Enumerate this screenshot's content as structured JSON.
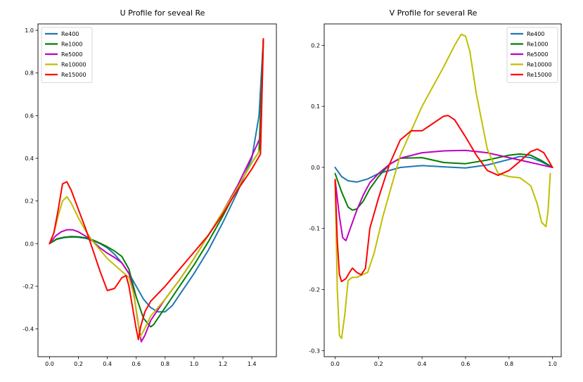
{
  "chart_data": [
    {
      "type": "line",
      "title": "U Profile for seveal Re",
      "xlabel": "",
      "ylabel": "",
      "xlim": [
        -0.08,
        1.57
      ],
      "ylim": [
        -0.53,
        1.03
      ],
      "xticks": [
        0.0,
        0.2,
        0.4,
        0.6,
        0.8,
        1.0,
        1.2,
        1.4
      ],
      "xtick_labels": [
        "0.0",
        "0.2",
        "0.4",
        "0.6",
        "0.8",
        "1.0",
        "1.2",
        "1.4"
      ],
      "yticks": [
        -0.4,
        -0.2,
        0.0,
        0.2,
        0.4,
        0.6,
        0.8,
        1.0
      ],
      "ytick_labels": [
        "-0.4",
        "-0.2",
        "0.0",
        "0.2",
        "0.4",
        "0.6",
        "0.8",
        "1.0"
      ],
      "grid": false,
      "legend_position": "top-left",
      "series": [
        {
          "name": "Re400",
          "color": "#1f77b4",
          "x": [
            0,
            0.05,
            0.1,
            0.15,
            0.2,
            0.25,
            0.3,
            0.35,
            0.4,
            0.45,
            0.5,
            0.55,
            0.6,
            0.65,
            0.7,
            0.75,
            0.8,
            0.85,
            0.9,
            1.0,
            1.1,
            1.2,
            1.3,
            1.4,
            1.45,
            1.48
          ],
          "y": [
            0,
            0.02,
            0.028,
            0.031,
            0.03,
            0.025,
            0.015,
            0.0,
            -0.02,
            -0.05,
            -0.09,
            -0.14,
            -0.2,
            -0.26,
            -0.3,
            -0.32,
            -0.32,
            -0.29,
            -0.24,
            -0.14,
            -0.03,
            0.1,
            0.24,
            0.4,
            0.6,
            0.96
          ]
        },
        {
          "name": "Re1000",
          "color": "#008000",
          "x": [
            0,
            0.05,
            0.1,
            0.15,
            0.2,
            0.25,
            0.3,
            0.35,
            0.4,
            0.45,
            0.5,
            0.55,
            0.6,
            0.65,
            0.7,
            0.72,
            0.75,
            0.8,
            0.9,
            1.0,
            1.1,
            1.2,
            1.3,
            1.4,
            1.45,
            1.48
          ],
          "y": [
            0,
            0.022,
            0.03,
            0.033,
            0.032,
            0.027,
            0.017,
            0.002,
            -0.015,
            -0.035,
            -0.06,
            -0.12,
            -0.25,
            -0.35,
            -0.39,
            -0.38,
            -0.35,
            -0.3,
            -0.2,
            -0.1,
            0.01,
            0.13,
            0.26,
            0.38,
            0.43,
            0.96
          ]
        },
        {
          "name": "Re5000",
          "color": "#bf00bf",
          "x": [
            0,
            0.04,
            0.08,
            0.12,
            0.16,
            0.2,
            0.25,
            0.3,
            0.35,
            0.4,
            0.45,
            0.5,
            0.55,
            0.58,
            0.61,
            0.635,
            0.66,
            0.7,
            0.8,
            0.9,
            1.0,
            1.1,
            1.2,
            1.3,
            1.4,
            1.46,
            1.48
          ],
          "y": [
            0,
            0.035,
            0.055,
            0.065,
            0.065,
            0.055,
            0.035,
            0.01,
            -0.02,
            -0.045,
            -0.065,
            -0.09,
            -0.14,
            -0.22,
            -0.36,
            -0.46,
            -0.43,
            -0.36,
            -0.26,
            -0.17,
            -0.07,
            0.04,
            0.15,
            0.27,
            0.41,
            0.5,
            0.96
          ]
        },
        {
          "name": "Re10000",
          "color": "#bfbf00",
          "x": [
            0,
            0.03,
            0.06,
            0.09,
            0.12,
            0.15,
            0.2,
            0.25,
            0.3,
            0.35,
            0.4,
            0.45,
            0.5,
            0.55,
            0.58,
            0.61,
            0.625,
            0.65,
            0.7,
            0.8,
            0.9,
            1.0,
            1.1,
            1.2,
            1.3,
            1.4,
            1.46,
            1.48
          ],
          "y": [
            0,
            0.05,
            0.13,
            0.2,
            0.22,
            0.19,
            0.12,
            0.06,
            0.01,
            -0.03,
            -0.07,
            -0.1,
            -0.13,
            -0.16,
            -0.23,
            -0.35,
            -0.44,
            -0.41,
            -0.34,
            -0.26,
            -0.17,
            -0.07,
            0.04,
            0.15,
            0.26,
            0.38,
            0.44,
            0.96
          ]
        },
        {
          "name": "Re15000",
          "color": "#ff0000",
          "x": [
            0,
            0.03,
            0.06,
            0.09,
            0.12,
            0.15,
            0.2,
            0.25,
            0.3,
            0.35,
            0.4,
            0.45,
            0.5,
            0.53,
            0.55,
            0.57,
            0.6,
            0.615,
            0.63,
            0.66,
            0.7,
            0.8,
            0.9,
            1.0,
            1.1,
            1.2,
            1.3,
            1.4,
            1.46,
            1.48
          ],
          "y": [
            0,
            0.05,
            0.16,
            0.28,
            0.29,
            0.25,
            0.16,
            0.07,
            -0.03,
            -0.13,
            -0.22,
            -0.21,
            -0.16,
            -0.15,
            -0.2,
            -0.28,
            -0.4,
            -0.45,
            -0.39,
            -0.32,
            -0.27,
            -0.2,
            -0.12,
            -0.04,
            0.04,
            0.14,
            0.25,
            0.35,
            0.42,
            0.96
          ]
        }
      ]
    },
    {
      "type": "line",
      "title": "V Profile for several Re",
      "xlabel": "",
      "ylabel": "",
      "xlim": [
        -0.05,
        1.04
      ],
      "ylim": [
        -0.31,
        0.235
      ],
      "xticks": [
        0.0,
        0.2,
        0.4,
        0.6,
        0.8,
        1.0
      ],
      "xtick_labels": [
        "0.0",
        "0.2",
        "0.4",
        "0.6",
        "0.8",
        "1.0"
      ],
      "yticks": [
        -0.3,
        -0.2,
        -0.1,
        0.0,
        0.1,
        0.2
      ],
      "ytick_labels": [
        "-0.3",
        "-0.2",
        "-0.1",
        "0.0",
        "0.1",
        "0.2"
      ],
      "grid": false,
      "legend_position": "top-right",
      "series": [
        {
          "name": "Re400",
          "color": "#1f77b4",
          "x": [
            0,
            0.03,
            0.06,
            0.1,
            0.15,
            0.2,
            0.3,
            0.4,
            0.5,
            0.6,
            0.7,
            0.8,
            0.85,
            0.9,
            0.95,
            1.0
          ],
          "y": [
            0,
            -0.015,
            -0.022,
            -0.024,
            -0.019,
            -0.01,
            0.0,
            0.003,
            0.001,
            -0.001,
            0.004,
            0.013,
            0.018,
            0.016,
            0.009,
            0.0
          ]
        },
        {
          "name": "Re1000",
          "color": "#008000",
          "x": [
            0,
            0.03,
            0.06,
            0.08,
            0.1,
            0.13,
            0.16,
            0.2,
            0.25,
            0.3,
            0.4,
            0.5,
            0.6,
            0.7,
            0.8,
            0.85,
            0.9,
            0.95,
            1.0
          ],
          "y": [
            -0.01,
            -0.04,
            -0.065,
            -0.07,
            -0.068,
            -0.055,
            -0.035,
            -0.015,
            0.005,
            0.015,
            0.016,
            0.008,
            0.006,
            0.012,
            0.02,
            0.022,
            0.02,
            0.011,
            0.0
          ]
        },
        {
          "name": "Re5000",
          "color": "#bf00bf",
          "x": [
            0,
            0.02,
            0.035,
            0.05,
            0.07,
            0.1,
            0.13,
            0.16,
            0.2,
            0.25,
            0.3,
            0.4,
            0.5,
            0.6,
            0.7,
            0.8,
            0.9,
            1.0
          ],
          "y": [
            -0.02,
            -0.08,
            -0.115,
            -0.12,
            -0.1,
            -0.07,
            -0.045,
            -0.025,
            -0.01,
            0.005,
            0.015,
            0.024,
            0.027,
            0.028,
            0.024,
            0.016,
            0.008,
            0.0
          ]
        },
        {
          "name": "Re10000",
          "color": "#bfbf00",
          "x": [
            0,
            0.01,
            0.02,
            0.03,
            0.045,
            0.06,
            0.08,
            0.1,
            0.13,
            0.15,
            0.18,
            0.22,
            0.3,
            0.4,
            0.5,
            0.55,
            0.58,
            0.6,
            0.62,
            0.65,
            0.7,
            0.75,
            0.8,
            0.85,
            0.9,
            0.93,
            0.95,
            0.97,
            0.98,
            0.99
          ],
          "y": [
            -0.02,
            -0.2,
            -0.275,
            -0.28,
            -0.24,
            -0.185,
            -0.18,
            -0.18,
            -0.175,
            -0.172,
            -0.14,
            -0.08,
            0.02,
            0.1,
            0.165,
            0.2,
            0.218,
            0.215,
            0.19,
            0.12,
            0.03,
            -0.01,
            -0.015,
            -0.017,
            -0.03,
            -0.06,
            -0.09,
            -0.097,
            -0.07,
            -0.01
          ]
        },
        {
          "name": "Re15000",
          "color": "#ff0000",
          "x": [
            0,
            0.01,
            0.02,
            0.03,
            0.05,
            0.07,
            0.08,
            0.1,
            0.12,
            0.14,
            0.16,
            0.18,
            0.2,
            0.25,
            0.3,
            0.35,
            0.4,
            0.45,
            0.5,
            0.52,
            0.55,
            0.6,
            0.65,
            0.7,
            0.75,
            0.8,
            0.85,
            0.9,
            0.93,
            0.96,
            1.0
          ],
          "y": [
            -0.02,
            -0.12,
            -0.175,
            -0.187,
            -0.182,
            -0.17,
            -0.165,
            -0.172,
            -0.176,
            -0.165,
            -0.1,
            -0.075,
            -0.05,
            0.005,
            0.045,
            0.06,
            0.06,
            0.072,
            0.084,
            0.085,
            0.078,
            0.05,
            0.02,
            -0.005,
            -0.013,
            -0.005,
            0.01,
            0.026,
            0.03,
            0.024,
            0.0
          ]
        }
      ]
    }
  ]
}
